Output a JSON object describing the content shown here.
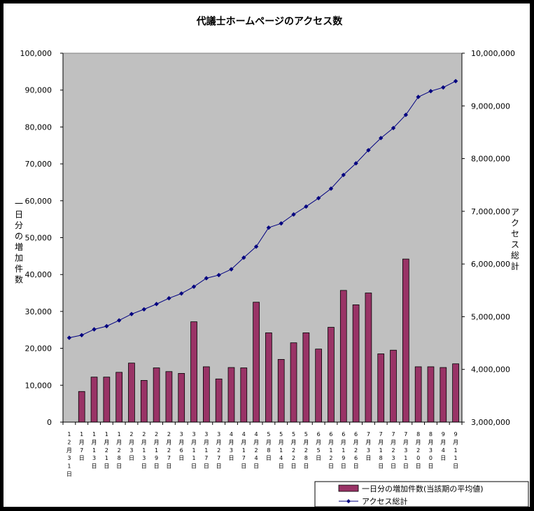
{
  "chart_data": {
    "type": "bar",
    "title": "代議士ホームページのアクセス数",
    "ylabel": "一日分の増加件数",
    "y2label": "アクセス総計",
    "ylim": [
      0,
      100000
    ],
    "y2lim": [
      3000000,
      10000000
    ],
    "y_ticks": [
      "0",
      "10,000",
      "20,000",
      "30,000",
      "40,000",
      "50,000",
      "60,000",
      "70,000",
      "80,000",
      "90,000",
      "100,000"
    ],
    "y2_ticks": [
      "3,000,000",
      "4,000,000",
      "5,000,000",
      "6,000,000",
      "7,000,000",
      "8,000,000",
      "9,000,000",
      "10,000,000"
    ],
    "categories": [
      "12月31日",
      "1月7日",
      "1月13日",
      "1月21日",
      "1月28日",
      "2月3日",
      "2月13日",
      "2月19日",
      "2月27日",
      "3月6日",
      "3月11日",
      "3月17日",
      "3月27日",
      "4月3日",
      "4月17日",
      "4月24日",
      "5月8日",
      "5月14日",
      "5月22日",
      "5月28日",
      "6月5日",
      "6月12日",
      "6月19日",
      "6月26日",
      "7月3日",
      "7月18日",
      "7月23日",
      "7月31日",
      "8月20日",
      "8月30日",
      "9月4日",
      "9月11日"
    ],
    "series": [
      {
        "name": "一日分の増加件数(当該期の平均値)",
        "type": "bar",
        "color": "#993366",
        "values": [
          0,
          8300,
          12200,
          12200,
          13500,
          16000,
          11300,
          14700,
          13700,
          13200,
          27200,
          15000,
          11700,
          14800,
          14700,
          32500,
          24200,
          17000,
          21500,
          24200,
          19800,
          25700,
          35700,
          31800,
          35000,
          18500,
          19500,
          44200,
          15000,
          15000,
          14800,
          15800
        ]
      },
      {
        "name": "アクセス総計",
        "type": "line",
        "axis": "right",
        "color": "#000080",
        "values": [
          4600000,
          4650000,
          4760000,
          4820000,
          4930000,
          5050000,
          5140000,
          5240000,
          5350000,
          5440000,
          5570000,
          5730000,
          5790000,
          5900000,
          6120000,
          6330000,
          6690000,
          6770000,
          6940000,
          7090000,
          7250000,
          7430000,
          7690000,
          7910000,
          8160000,
          8390000,
          8580000,
          8830000,
          9170000,
          9280000,
          9350000,
          9470000
        ]
      }
    ],
    "legend_position": "bottom-right",
    "grid": false
  }
}
